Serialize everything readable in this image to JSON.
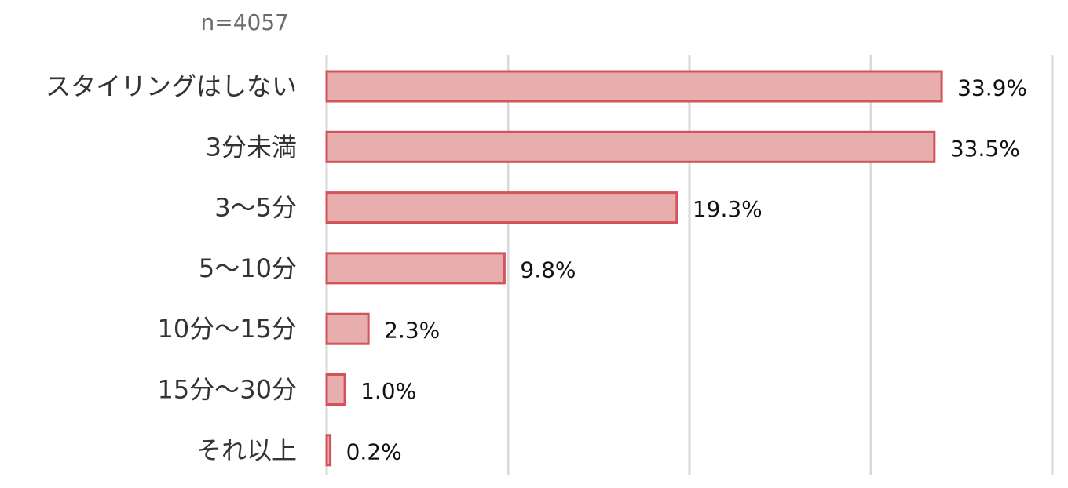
{
  "chart_data": {
    "type": "bar",
    "orientation": "horizontal",
    "note": "n=4057",
    "categories": [
      "スタイリングはしない",
      "3分未満",
      "3～5分",
      "5～10分",
      "10分～15分",
      "15分～30分",
      "それ以上"
    ],
    "values": [
      33.9,
      33.5,
      19.3,
      9.8,
      2.3,
      1.0,
      0.2
    ],
    "value_labels": [
      "33.9%",
      "33.5%",
      "19.3%",
      "9.8%",
      "2.3%",
      "1.0%",
      "0.2%"
    ],
    "xlim": [
      0,
      40
    ],
    "x_gridlines": [
      0,
      10,
      20,
      30,
      40
    ],
    "grid": true,
    "legend": "none",
    "colors": {
      "bar_fill": "#e8aeae",
      "bar_stroke": "#d0545a",
      "grid": "#d9d9d9"
    }
  }
}
